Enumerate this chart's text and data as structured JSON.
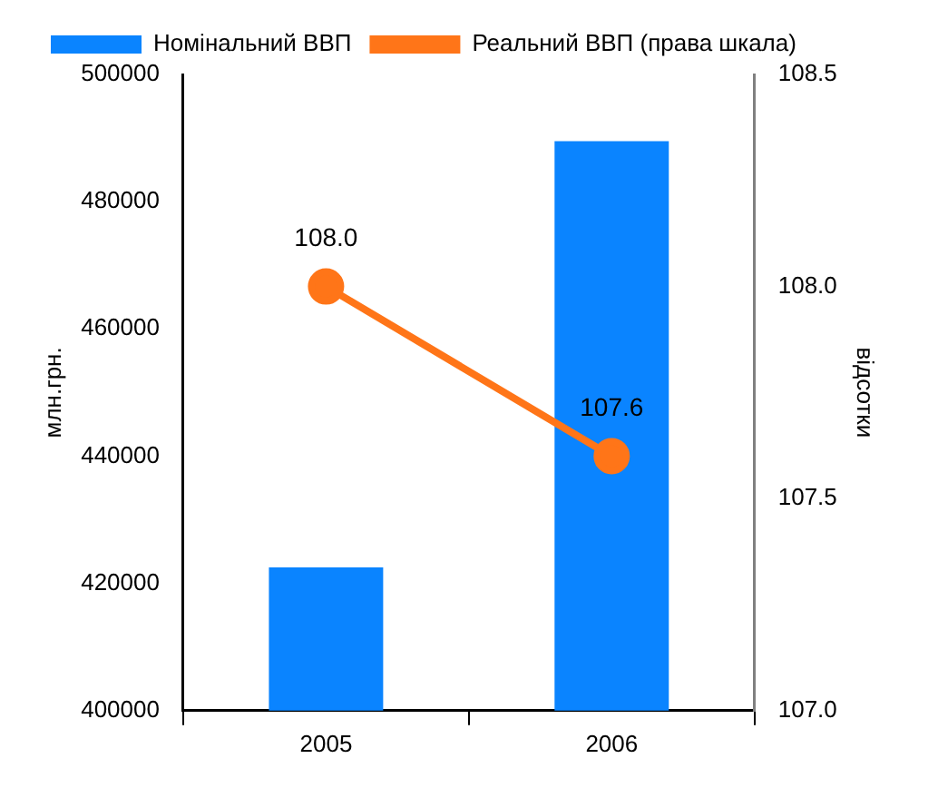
{
  "chart_data": {
    "type": "bar",
    "categories": [
      "2005",
      "2006"
    ],
    "ylabel": "млн.грн.",
    "y2label": "відсотки",
    "series": [
      {
        "name": "Номінальний ВВП",
        "color": "#0a84ff",
        "values": [
          422500,
          489500
        ]
      },
      {
        "name": "Реальний ВВП (права шкала)",
        "type": "line",
        "axis": "y2",
        "color": "#ff7518",
        "values": [
          108.0,
          107.6
        ],
        "value_labels": [
          "108.0",
          "107.6"
        ],
        "marker": "circle"
      }
    ],
    "ylim": [
      400000,
      500000
    ],
    "yticks": [
      400000,
      420000,
      440000,
      460000,
      480000,
      500000
    ],
    "y2lim": [
      107.0,
      108.5
    ],
    "y2ticks": [
      {
        "value": 107.0,
        "label": "107.0"
      },
      {
        "value": 107.5,
        "label": "107.5"
      },
      {
        "value": 108.0,
        "label": "108.0"
      },
      {
        "value": 108.5,
        "label": "108.5"
      }
    ],
    "grid": false,
    "legend": "top left"
  }
}
